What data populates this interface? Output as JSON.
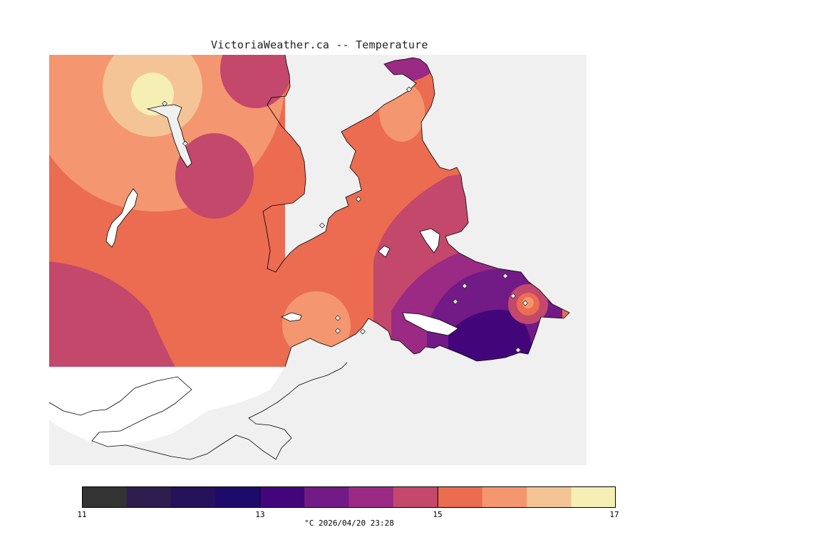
{
  "title": "VictoriaWeather.ca -- Temperature",
  "map": {
    "variable": "Temperature",
    "unit": "°C",
    "timestamp": "2026/04/20 23:28",
    "background_color": "#f0f0f0",
    "land_outline_color": "#000000",
    "station_marker": "diamond-icon"
  },
  "legend": {
    "caption": "°C  2026/04/20 23:28",
    "min": 11,
    "max": 17,
    "tick_labels": [
      "11",
      "13",
      "15",
      "17"
    ],
    "colors": [
      "#333333",
      "#2e1d4e",
      "#25115c",
      "#1e0a6b",
      "#43067a",
      "#721a86",
      "#9b2a85",
      "#c3486c",
      "#eb6c51",
      "#f49670",
      "#f5c496",
      "#f5efb6"
    ]
  }
}
